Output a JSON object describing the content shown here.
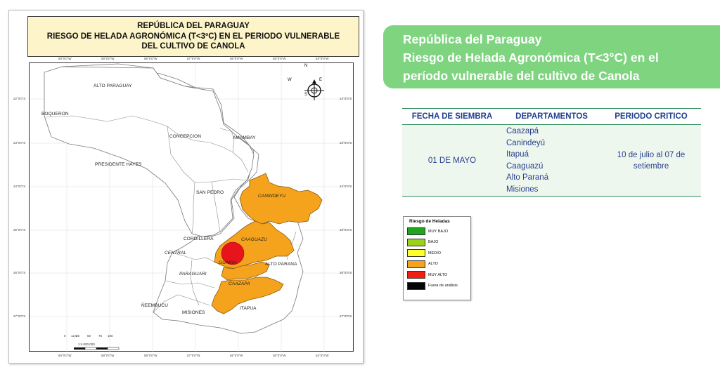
{
  "map": {
    "title_lines": [
      "REPÚBLICA DEL PARAGUAY",
      "RIESGO DE HELADA AGRONÓMICA (T<3ºC) EN EL PERIODO VULNERABLE",
      "DEL CULTIVO DE CANOLA"
    ],
    "departments": {
      "alto_paraguay": "ALTO PARAGUAY",
      "boqueron": "BOQUERON",
      "presidente_hayes": "PRESIDENTE HAYES",
      "concepcion": "CONCEPCION",
      "amambay": "AMAMBAY",
      "san_pedro": "SAN PEDRO",
      "canindeyu": "CANINDEYU",
      "cordillera": "CORDILLERA",
      "caaguazu": "CAAGUAZU",
      "central": "CENTRAL",
      "guaira": "GUAIRA",
      "alto_parana": "ALTO PARANA",
      "paraguari": "PARAGUARI",
      "caazapa": "CAAZAPA",
      "neembucu": "ÑEEMBUCU",
      "misiones": "MISIONES",
      "itapua": "ITAPUA"
    },
    "lon_ticks": [
      "60°0'0\"W",
      "59°0'0\"W",
      "58°0'0\"W",
      "57°0'0\"W",
      "56°0'0\"W",
      "55°0'0\"W",
      "54°0'0\"W"
    ],
    "lat_ticks": [
      "22°0'0\"S",
      "23°0'0\"S",
      "24°0'0\"S",
      "25°0'0\"S",
      "26°0'0\"S",
      "27°0'0\"S"
    ],
    "compass": {
      "n": "N",
      "s": "S",
      "e": "E",
      "w": "W"
    },
    "scale": {
      "numbers": [
        "0",
        "12,5",
        "25",
        "50",
        "75",
        "100"
      ],
      "ratio": "1:4.000.000"
    },
    "colors": {
      "alto": "#f5a31c",
      "muy_alto": "#e8141c"
    }
  },
  "header": {
    "line1": "República del Paraguay",
    "line2": "Riesgo de Helada Agronómica (T<3°C) en el",
    "line3": "período vulnerable del cultivo de Canola",
    "bg_color": "#7ed47f"
  },
  "table": {
    "headers": [
      "FECHA DE SIEMBRA",
      "DEPARTAMENTOS",
      "PERIODO CRITICO"
    ],
    "fecha": "01 DE MAYO",
    "departamentos": [
      "Caazapá",
      "Canindeyú",
      "Itapuá",
      "Caaguazú",
      "Alto Paraná",
      "Misiones"
    ],
    "periodo": "10 de julio al 07 de setiembre"
  },
  "legend": {
    "title": "Riesgo de Heladas",
    "items": [
      {
        "label": "MUY BAJO",
        "color": "#1fa51f"
      },
      {
        "label": "BAJO",
        "color": "#9bd21e"
      },
      {
        "label": "MEDIO",
        "color": "#ffff2a"
      },
      {
        "label": "ALTO",
        "color": "#f5a31c"
      },
      {
        "label": "MUY ALTO",
        "color": "#f21d0c"
      },
      {
        "label": "Fuera de análisis",
        "color": "#050505"
      }
    ]
  }
}
